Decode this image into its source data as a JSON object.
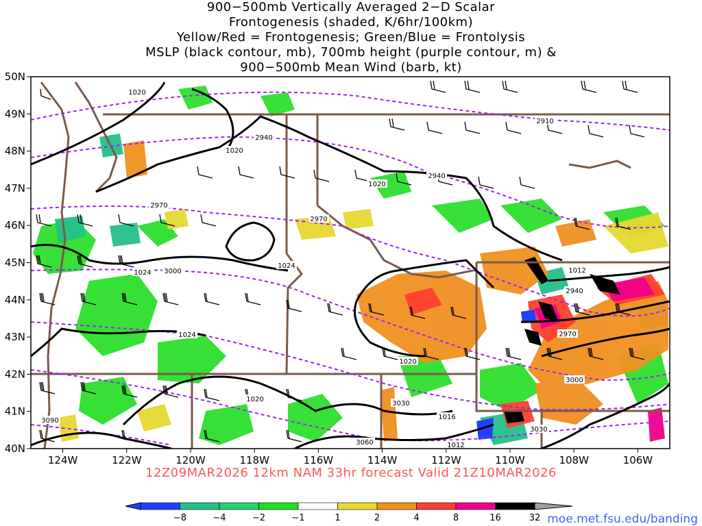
{
  "title_lines": [
    "900−500mb Vertically Averaged 2−D Scalar",
    "Frontogenesis (shaded, K/6hr/100km)",
    "Yellow/Red = Frontogenesis;  Green/Blue = Frontolysis",
    "MSLP (black contour, mb), 700mb height (purple contour, m) &",
    "900−500mb Mean Wind (barb, kt)"
  ],
  "map": {
    "lat_labels": [
      "50N",
      "49N",
      "48N",
      "47N",
      "46N",
      "45N",
      "44N",
      "43N",
      "42N",
      "41N",
      "40N"
    ],
    "lon_labels": [
      "124W",
      "122W",
      "120W",
      "118W",
      "116W",
      "114W",
      "112W",
      "110W",
      "108W",
      "106W"
    ],
    "lat_range": [
      40,
      50
    ],
    "lon_range": [
      -125,
      -105
    ],
    "pressure_labels": [
      "1020",
      "1020",
      "1020",
      "1024",
      "1024",
      "1024",
      "1020",
      "1020",
      "1016",
      "1012",
      "1012"
    ],
    "height_labels": [
      "2910",
      "2940",
      "2940",
      "2970",
      "2970",
      "3000",
      "2940",
      "2970",
      "3000",
      "3030",
      "3030",
      "3060",
      "3090"
    ]
  },
  "valid_text": "12Z09MAR2026 12km NAM 33hr forecast Valid 21Z10MAR2026",
  "colorbar": {
    "labels": [
      "−8",
      "−4",
      "−2",
      "−1",
      "1",
      "2",
      "4",
      "8",
      "16",
      "32"
    ],
    "colors": [
      "#2040ff",
      "#25c08a",
      "#2ad070",
      "#22dd22",
      "#ffffff",
      "#e6d830",
      "#f09020",
      "#ff4030",
      "#f0008a",
      "#000000"
    ]
  },
  "credit": "moe.met.fsu.edu/banding",
  "colors": {
    "mslp": "#000000",
    "height": "#a020f0",
    "borders": "#7a5a48",
    "valid_text": "#ff5555",
    "credit": "#3f63ff"
  }
}
